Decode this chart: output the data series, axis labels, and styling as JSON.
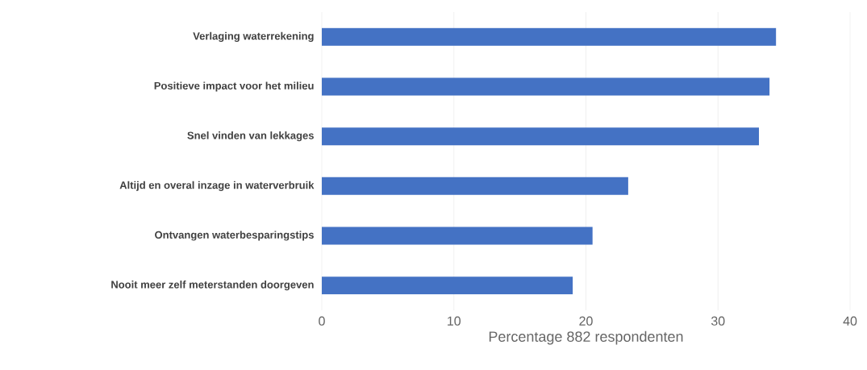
{
  "chart_data": {
    "type": "bar",
    "orientation": "horizontal",
    "xlabel": "Percentage 882 respondenten",
    "categories": [
      "Verlaging waterrekening",
      "Positieve impact voor het milieu",
      "Snel vinden van lekkages",
      "Altijd en overal inzage in waterverbruik",
      "Ontvangen waterbesparingstips",
      "Nooit meer zelf meterstanden doorgeven"
    ],
    "values": [
      34.4,
      33.9,
      33.1,
      23.2,
      20.5,
      19.0
    ],
    "color": "#4472c4",
    "xlim": [
      0,
      40
    ],
    "xticks": [
      0,
      10,
      20,
      30,
      40
    ],
    "grid": "x"
  }
}
